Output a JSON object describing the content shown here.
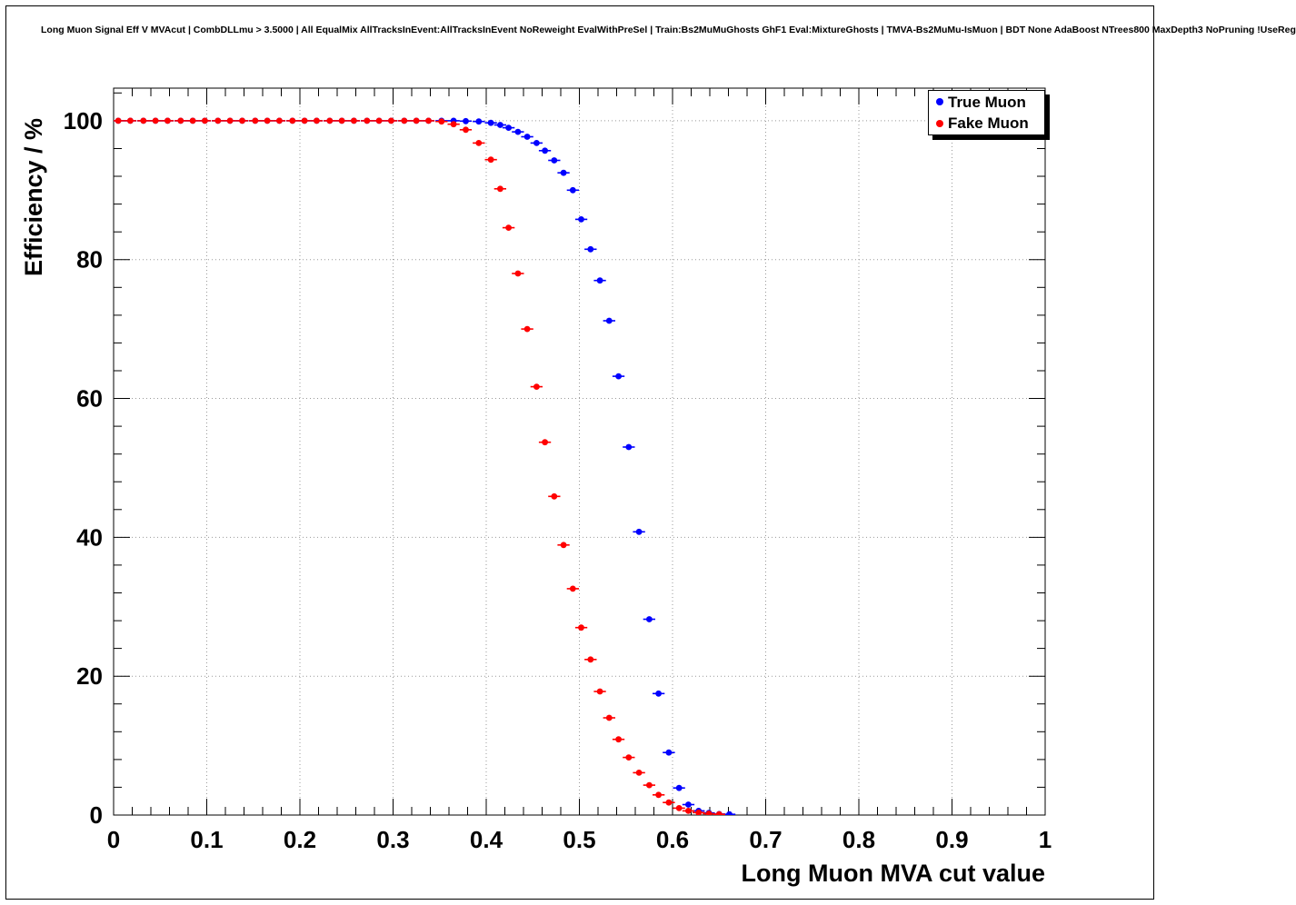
{
  "title": "Long Muon Signal Eff V MVAcut | CombDLLmu > 3.5000 | All EqualMix AllTracksInEvent:AllTracksInEvent NoReweight EvalWithPreSel | Train:Bs2MuMuGhosts GhF1 Eval:MixtureGhosts | TMVA-Bs2MuMu-IsMuon | BDT None AdaBoost NTrees800 MaxDepth3 NoPruning !UseReg",
  "colors": {
    "true_muon": "#0000ff",
    "fake_muon": "#ff0000",
    "grid": "#999999",
    "frame": "#000000",
    "background": "#ffffff"
  },
  "chart_data": {
    "type": "scatter",
    "title": "Long Muon Signal Eff V MVAcut | CombDLLmu > 3.5000 | All EqualMix AllTracksInEvent:AllTracksInEvent NoReweight EvalWithPreSel | Train:Bs2MuMuGhosts GhF1 Eval:MixtureGhosts | TMVA-Bs2MuMu-IsMuon | BDT None AdaBoost NTrees800 MaxDepth3 NoPruning !UseReg",
    "xlabel": "Long Muon MVA cut value",
    "ylabel": "Efficiency / %",
    "xlim": [
      0,
      1
    ],
    "ylim": [
      0,
      104.7
    ],
    "grid": true,
    "x_ticks": [
      0,
      0.1,
      0.2,
      0.3,
      0.4,
      0.5,
      0.6,
      0.7,
      0.8,
      0.9,
      1
    ],
    "x_tick_labels": [
      "0",
      "0.1",
      "0.2",
      "0.3",
      "0.4",
      "0.5",
      "0.6",
      "0.7",
      "0.8",
      "0.9",
      "1"
    ],
    "y_ticks": [
      0,
      20,
      40,
      60,
      80,
      100
    ],
    "y_tick_labels": [
      "0",
      "20",
      "40",
      "60",
      "80",
      "100"
    ],
    "x_minor_step": 0.02,
    "y_minor_step": 4,
    "x_error": 0.0065,
    "legend": {
      "position": "top-right",
      "entries": [
        {
          "label": "True Muon",
          "color": "#0000ff"
        },
        {
          "label": "Fake Muon",
          "color": "#ff0000"
        }
      ]
    },
    "series": [
      {
        "name": "True Muon",
        "color": "#0000ff",
        "marker": "circle",
        "points": [
          [
            0.005,
            100
          ],
          [
            0.018,
            100
          ],
          [
            0.032,
            100
          ],
          [
            0.045,
            100
          ],
          [
            0.058,
            100
          ],
          [
            0.072,
            100
          ],
          [
            0.085,
            100
          ],
          [
            0.098,
            100
          ],
          [
            0.112,
            100
          ],
          [
            0.125,
            100
          ],
          [
            0.138,
            100
          ],
          [
            0.152,
            100
          ],
          [
            0.165,
            100
          ],
          [
            0.178,
            100
          ],
          [
            0.192,
            100
          ],
          [
            0.205,
            100
          ],
          [
            0.218,
            100
          ],
          [
            0.232,
            100
          ],
          [
            0.245,
            100
          ],
          [
            0.258,
            100
          ],
          [
            0.272,
            100
          ],
          [
            0.285,
            100
          ],
          [
            0.298,
            100
          ],
          [
            0.312,
            100
          ],
          [
            0.325,
            100
          ],
          [
            0.338,
            100
          ],
          [
            0.352,
            100
          ],
          [
            0.365,
            100
          ],
          [
            0.378,
            99.95
          ],
          [
            0.392,
            99.9
          ],
          [
            0.405,
            99.7
          ],
          [
            0.415,
            99.4
          ],
          [
            0.424,
            99.0
          ],
          [
            0.434,
            98.4
          ],
          [
            0.444,
            97.7
          ],
          [
            0.454,
            96.8
          ],
          [
            0.463,
            95.7
          ],
          [
            0.473,
            94.3
          ],
          [
            0.483,
            92.5
          ],
          [
            0.493,
            90.0
          ],
          [
            0.502,
            85.8
          ],
          [
            0.512,
            81.5
          ],
          [
            0.522,
            77.0
          ],
          [
            0.532,
            71.2
          ],
          [
            0.542,
            63.2
          ],
          [
            0.553,
            53.0
          ],
          [
            0.564,
            40.8
          ],
          [
            0.575,
            28.2
          ],
          [
            0.585,
            17.5
          ],
          [
            0.596,
            9.0
          ],
          [
            0.607,
            3.9
          ],
          [
            0.617,
            1.5
          ],
          [
            0.628,
            0.6
          ],
          [
            0.639,
            0.3
          ],
          [
            0.65,
            0.15
          ],
          [
            0.661,
            0.1
          ]
        ]
      },
      {
        "name": "Fake Muon",
        "color": "#ff0000",
        "marker": "circle",
        "points": [
          [
            0.005,
            100
          ],
          [
            0.018,
            100
          ],
          [
            0.032,
            100
          ],
          [
            0.045,
            100
          ],
          [
            0.058,
            100
          ],
          [
            0.072,
            100
          ],
          [
            0.085,
            100
          ],
          [
            0.098,
            100
          ],
          [
            0.112,
            100
          ],
          [
            0.125,
            100
          ],
          [
            0.138,
            100
          ],
          [
            0.152,
            100
          ],
          [
            0.165,
            100
          ],
          [
            0.178,
            100
          ],
          [
            0.192,
            100
          ],
          [
            0.205,
            100
          ],
          [
            0.218,
            100
          ],
          [
            0.232,
            100
          ],
          [
            0.245,
            100
          ],
          [
            0.258,
            100
          ],
          [
            0.272,
            100
          ],
          [
            0.285,
            100
          ],
          [
            0.298,
            100
          ],
          [
            0.312,
            100
          ],
          [
            0.325,
            100
          ],
          [
            0.338,
            100
          ],
          [
            0.352,
            99.9
          ],
          [
            0.365,
            99.5
          ],
          [
            0.378,
            98.7
          ],
          [
            0.392,
            96.8
          ],
          [
            0.405,
            94.4
          ],
          [
            0.415,
            90.2
          ],
          [
            0.424,
            84.6
          ],
          [
            0.434,
            78.0
          ],
          [
            0.444,
            70.0
          ],
          [
            0.454,
            61.7
          ],
          [
            0.463,
            53.7
          ],
          [
            0.473,
            45.9
          ],
          [
            0.483,
            38.9
          ],
          [
            0.493,
            32.6
          ],
          [
            0.502,
            27.0
          ],
          [
            0.512,
            22.4
          ],
          [
            0.522,
            17.8
          ],
          [
            0.532,
            14.0
          ],
          [
            0.542,
            10.9
          ],
          [
            0.553,
            8.3
          ],
          [
            0.564,
            6.1
          ],
          [
            0.575,
            4.3
          ],
          [
            0.585,
            2.9
          ],
          [
            0.596,
            1.8
          ],
          [
            0.607,
            1.0
          ],
          [
            0.617,
            0.6
          ],
          [
            0.628,
            0.35
          ],
          [
            0.639,
            0.2
          ],
          [
            0.65,
            0.1
          ]
        ]
      }
    ]
  }
}
